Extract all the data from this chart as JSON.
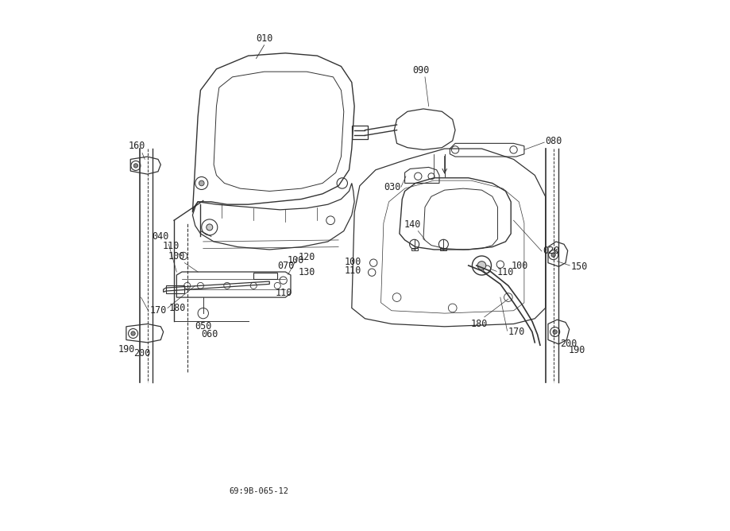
{
  "background_color": "#ffffff",
  "diagram_code": "69:9B-065-12",
  "figsize": [
    9.19,
    6.68
  ],
  "dpi": 100,
  "line_color": "#333333",
  "text_color": "#222222",
  "font_size": 8.5
}
